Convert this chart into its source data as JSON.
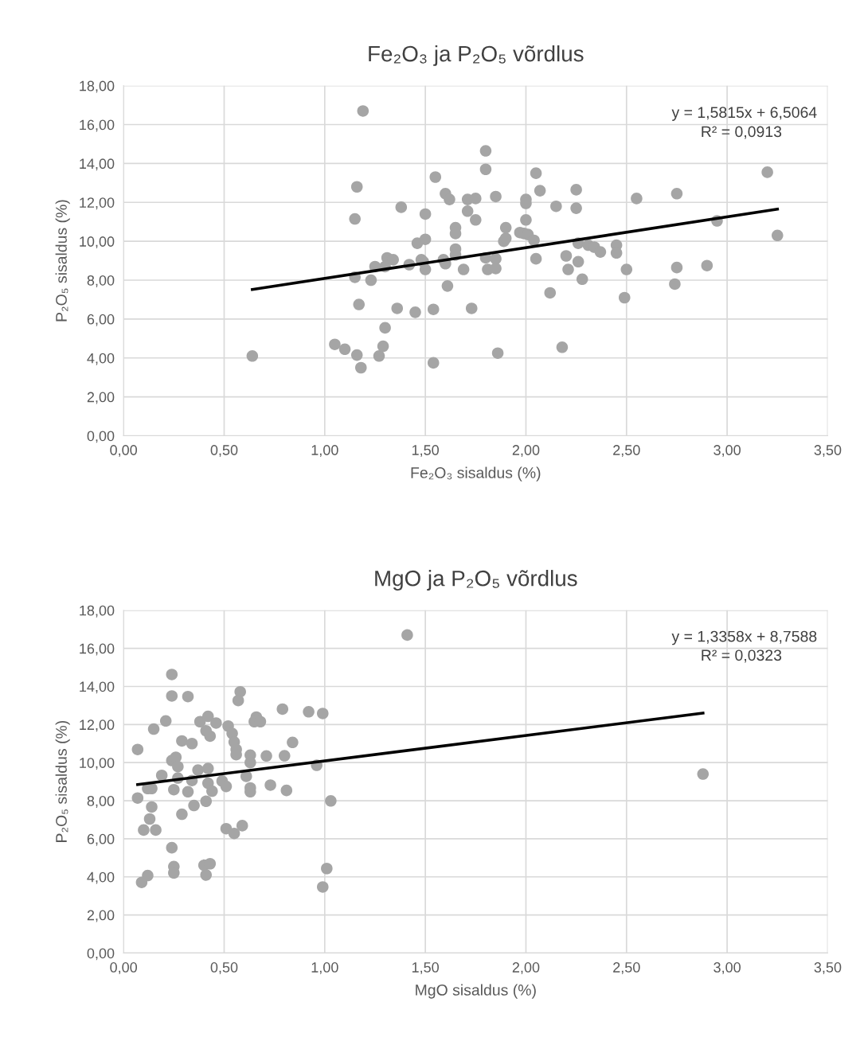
{
  "chart_data": [
    {
      "type": "scatter",
      "title": "Fe₂O₃ ja P₂O₅ võrdlus",
      "xlabel": "Fe₂O₃ sisaldus (%)",
      "ylabel": "P₂O₅ sisaldus (%)",
      "annotations": [
        "y = 1,5815x + 6,5064",
        "R² = 0,0913"
      ],
      "xlim": [
        0,
        3.5
      ],
      "ylim": [
        0,
        18
      ],
      "xticks": [
        {
          "value": 0,
          "label": "0,00"
        },
        {
          "value": 0.5,
          "label": "0,50"
        },
        {
          "value": 1,
          "label": "1,00"
        },
        {
          "value": 1.5,
          "label": "1,50"
        },
        {
          "value": 2,
          "label": "2,00"
        },
        {
          "value": 2.5,
          "label": "2,50"
        },
        {
          "value": 3,
          "label": "3,00"
        },
        {
          "value": 3.5,
          "label": "3,50"
        }
      ],
      "yticks": [
        {
          "value": 0,
          "label": "0,00"
        },
        {
          "value": 2,
          "label": "2,00"
        },
        {
          "value": 4,
          "label": "4,00"
        },
        {
          "value": 6,
          "label": "6,00"
        },
        {
          "value": 8,
          "label": "8,00"
        },
        {
          "value": 10,
          "label": "10,00"
        },
        {
          "value": 12,
          "label": "12,00"
        },
        {
          "value": 14,
          "label": "14,00"
        },
        {
          "value": 16,
          "label": "16,00"
        },
        {
          "value": 18,
          "label": "18,00"
        }
      ],
      "grid": true,
      "legend": false,
      "series": [
        {
          "marker": "circle",
          "color": "#a5a5a5",
          "x": [
            0.64,
            1.05,
            1.1,
            1.15,
            1.16,
            1.15,
            1.17,
            1.16,
            1.18,
            1.19,
            1.23,
            1.25,
            1.27,
            1.29,
            1.3,
            1.3,
            1.31,
            1.34,
            1.36,
            1.38,
            1.42,
            1.45,
            1.46,
            1.48,
            1.49,
            1.5,
            1.5,
            1.5,
            1.54,
            1.54,
            1.55,
            1.59,
            1.6,
            1.6,
            1.61,
            1.62,
            1.65,
            1.65,
            1.65,
            1.65,
            1.69,
            1.71,
            1.71,
            1.73,
            1.75,
            1.75,
            1.8,
            1.8,
            1.8,
            1.81,
            1.85,
            1.85,
            1.85,
            1.86,
            1.89,
            1.9,
            1.9,
            1.97,
            1.99,
            2.0,
            2.0,
            2.0,
            2.01,
            2.04,
            2.05,
            2.05,
            2.07,
            2.12,
            2.15,
            2.18,
            2.2,
            2.21,
            2.25,
            2.25,
            2.26,
            2.26,
            2.28,
            2.31,
            2.34,
            2.37,
            2.45,
            2.45,
            2.49,
            2.5,
            2.55,
            2.74,
            2.75,
            2.75,
            2.9,
            2.95,
            3.2,
            3.25
          ],
          "values": [
            4.1,
            4.7,
            4.45,
            11.15,
            12.8,
            8.15,
            6.75,
            4.15,
            3.5,
            16.7,
            8.0,
            8.7,
            4.1,
            4.6,
            5.55,
            8.7,
            9.15,
            9.05,
            6.55,
            11.75,
            8.8,
            6.35,
            9.9,
            9.05,
            8.95,
            11.4,
            10.1,
            8.55,
            3.75,
            6.5,
            13.3,
            9.05,
            12.45,
            8.85,
            7.7,
            12.15,
            10.7,
            10.4,
            9.6,
            9.3,
            8.55,
            12.15,
            11.55,
            6.55,
            12.2,
            11.1,
            14.65,
            13.7,
            9.15,
            8.55,
            12.3,
            9.1,
            8.6,
            4.25,
            10.0,
            10.15,
            10.7,
            10.45,
            10.4,
            12.15,
            11.95,
            11.1,
            10.35,
            10.05,
            13.5,
            9.1,
            12.6,
            7.35,
            11.8,
            4.55,
            9.25,
            8.55,
            12.65,
            11.7,
            9.9,
            8.95,
            8.05,
            9.8,
            9.7,
            9.45,
            9.8,
            9.4,
            7.1,
            8.55,
            12.2,
            7.8,
            12.45,
            8.65,
            8.75,
            11.05,
            13.55,
            10.3
          ]
        },
        {
          "type": "line",
          "color": "#000000",
          "x": [
            0.64,
            3.25
          ],
          "values": [
            7.52,
            11.65
          ]
        }
      ]
    },
    {
      "type": "scatter",
      "title": "MgO ja P₂O₅ võrdlus",
      "xlabel": "MgO sisaldus (%)",
      "ylabel": "P₂O₅ sisaldus (%)",
      "annotations": [
        "y = 1,3358x + 8,7588",
        "R² = 0,0323"
      ],
      "xlim": [
        0,
        3.5
      ],
      "ylim": [
        0,
        18
      ],
      "xticks": [
        {
          "value": 0,
          "label": "0,00"
        },
        {
          "value": 0.5,
          "label": "0,50"
        },
        {
          "value": 1,
          "label": "1,00"
        },
        {
          "value": 1.5,
          "label": "1,50"
        },
        {
          "value": 2,
          "label": "2,00"
        },
        {
          "value": 2.5,
          "label": "2,50"
        },
        {
          "value": 3,
          "label": "3,00"
        },
        {
          "value": 3.5,
          "label": "3,50"
        }
      ],
      "yticks": [
        {
          "value": 0,
          "label": "0,00"
        },
        {
          "value": 2,
          "label": "2,00"
        },
        {
          "value": 4,
          "label": "4,00"
        },
        {
          "value": 6,
          "label": "6,00"
        },
        {
          "value": 8,
          "label": "8,00"
        },
        {
          "value": 10,
          "label": "10,00"
        },
        {
          "value": 12,
          "label": "12,00"
        },
        {
          "value": 14,
          "label": "14,00"
        },
        {
          "value": 16,
          "label": "16,00"
        },
        {
          "value": 18,
          "label": "18,00"
        }
      ],
      "grid": true,
      "legend": false,
      "series": [
        {
          "marker": "circle",
          "color": "#a5a5a5",
          "x": [
            0.24,
            0.24,
            0.32,
            0.58,
            0.57,
            0.79,
            0.92,
            0.99,
            0.21,
            0.15,
            0.38,
            0.42,
            0.46,
            0.41,
            0.43,
            0.52,
            0.54,
            0.55,
            0.56,
            0.56,
            0.66,
            0.65,
            0.68,
            0.84,
            0.29,
            0.34,
            0.07,
            0.24,
            0.26,
            0.27,
            0.63,
            0.63,
            0.71,
            0.8,
            0.96,
            0.19,
            0.27,
            0.37,
            0.42,
            0.34,
            0.42,
            0.49,
            0.51,
            0.61,
            0.12,
            0.14,
            0.25,
            0.32,
            0.44,
            0.63,
            0.63,
            0.73,
            0.81,
            0.07,
            0.14,
            0.29,
            0.35,
            0.41,
            1.03,
            0.13,
            0.1,
            0.16,
            0.51,
            0.55,
            0.59,
            0.24,
            0.25,
            0.25,
            0.4,
            0.43,
            0.41,
            0.12,
            0.09,
            1.01,
            0.99,
            1.41,
            2.88
          ],
          "values": [
            14.63,
            13.5,
            13.47,
            13.72,
            13.26,
            12.81,
            12.67,
            12.58,
            12.19,
            11.76,
            12.15,
            12.43,
            12.08,
            11.67,
            11.39,
            11.92,
            11.53,
            11.08,
            10.69,
            10.42,
            12.39,
            12.15,
            12.15,
            11.06,
            11.14,
            11.0,
            10.69,
            10.11,
            10.28,
            9.79,
            10.39,
            10.0,
            10.35,
            10.36,
            9.86,
            9.33,
            9.19,
            9.61,
            9.69,
            9.06,
            8.92,
            9.03,
            8.75,
            9.28,
            8.64,
            8.64,
            8.58,
            8.47,
            8.5,
            8.67,
            8.47,
            8.82,
            8.54,
            8.14,
            7.67,
            7.29,
            7.75,
            7.97,
            7.99,
            7.04,
            6.46,
            6.46,
            6.53,
            6.28,
            6.69,
            5.53,
            4.54,
            4.21,
            4.61,
            4.69,
            4.1,
            4.07,
            3.71,
            4.44,
            3.47,
            16.7,
            9.4
          ]
        },
        {
          "type": "line",
          "color": "#000000",
          "x": [
            0.07,
            2.88
          ],
          "values": [
            8.85,
            12.6
          ]
        }
      ]
    }
  ]
}
